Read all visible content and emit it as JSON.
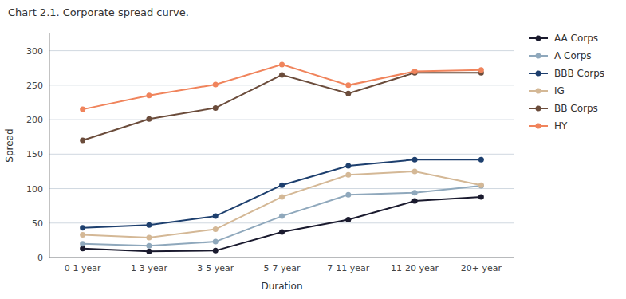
{
  "chart_data": {
    "type": "line",
    "title": "Chart 2.1. Corporate spread curve.",
    "x_label": "Duration",
    "y_label": "Spread",
    "categories": [
      "0-1 year",
      "1-3 year",
      "3-5 year",
      "5-7 year",
      "7-11 year",
      "11-20 year",
      "20+ year"
    ],
    "series": [
      {
        "name": "AA Corps",
        "color": "#1a1a2e",
        "values": [
          13,
          9,
          10,
          37,
          55,
          82,
          88
        ]
      },
      {
        "name": "A Corps",
        "color": "#8fa8bc",
        "values": [
          20,
          17,
          23,
          60,
          91,
          94,
          104
        ]
      },
      {
        "name": "BBB Corps",
        "color": "#1d3f6e",
        "values": [
          43,
          47,
          60,
          105,
          133,
          142,
          142
        ]
      },
      {
        "name": "IG",
        "color": "#d4b896",
        "values": [
          33,
          29,
          41,
          88,
          120,
          125,
          105
        ]
      },
      {
        "name": "BB Corps",
        "color": "#6b4c3b",
        "values": [
          170,
          201,
          217,
          265,
          238,
          268,
          268
        ]
      },
      {
        "name": "HY",
        "color": "#f0845c",
        "values": [
          215,
          235,
          251,
          280,
          250,
          270,
          272
        ]
      }
    ],
    "ylim": [
      0,
      325
    ],
    "yticks": [
      0,
      50,
      100,
      150,
      200,
      250,
      300
    ],
    "grid": true,
    "legend": "right",
    "marker": "circle"
  }
}
